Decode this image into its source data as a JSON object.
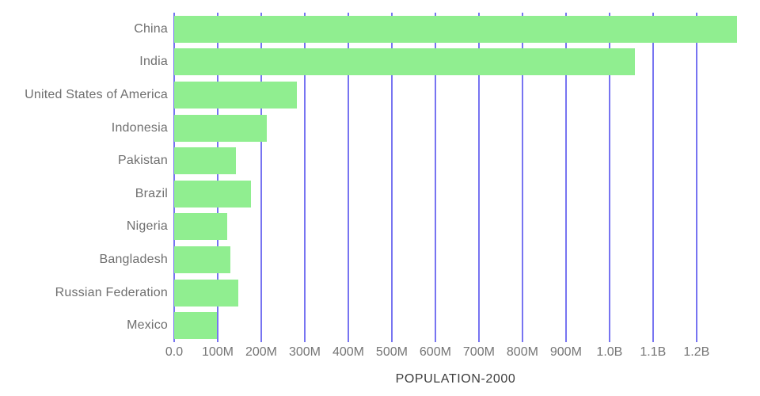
{
  "chart_data": {
    "type": "bar",
    "orientation": "horizontal",
    "title": "",
    "xlabel": "POPULATION-2000",
    "ylabel": "",
    "categories": [
      "China",
      "India",
      "United States of America",
      "Indonesia",
      "Pakistan",
      "Brazil",
      "Nigeria",
      "Bangladesh",
      "Russian Federation",
      "Mexico"
    ],
    "values": [
      1293000000,
      1058000000,
      281000000,
      212000000,
      142000000,
      176000000,
      122000000,
      129000000,
      147000000,
      99000000
    ],
    "xlim": [
      0,
      1293000000
    ],
    "xticks": [
      {
        "value": 0,
        "label": "0.0"
      },
      {
        "value": 100000000,
        "label": "100M"
      },
      {
        "value": 200000000,
        "label": "200M"
      },
      {
        "value": 300000000,
        "label": "300M"
      },
      {
        "value": 400000000,
        "label": "400M"
      },
      {
        "value": 500000000,
        "label": "500M"
      },
      {
        "value": 600000000,
        "label": "600M"
      },
      {
        "value": 700000000,
        "label": "700M"
      },
      {
        "value": 800000000,
        "label": "800M"
      },
      {
        "value": 900000000,
        "label": "900M"
      },
      {
        "value": 1000000000,
        "label": "1.0B"
      },
      {
        "value": 1100000000,
        "label": "1.1B"
      },
      {
        "value": 1200000000,
        "label": "1.2B"
      }
    ],
    "grid": "vertical",
    "legend": "none",
    "colors": {
      "bar": "#90ee90",
      "gridline": "#7774f1",
      "tick_label": "#757575",
      "category_label": "#6f6f6f",
      "axis_title": "#3d3d3d",
      "background": "#ffffff"
    }
  }
}
